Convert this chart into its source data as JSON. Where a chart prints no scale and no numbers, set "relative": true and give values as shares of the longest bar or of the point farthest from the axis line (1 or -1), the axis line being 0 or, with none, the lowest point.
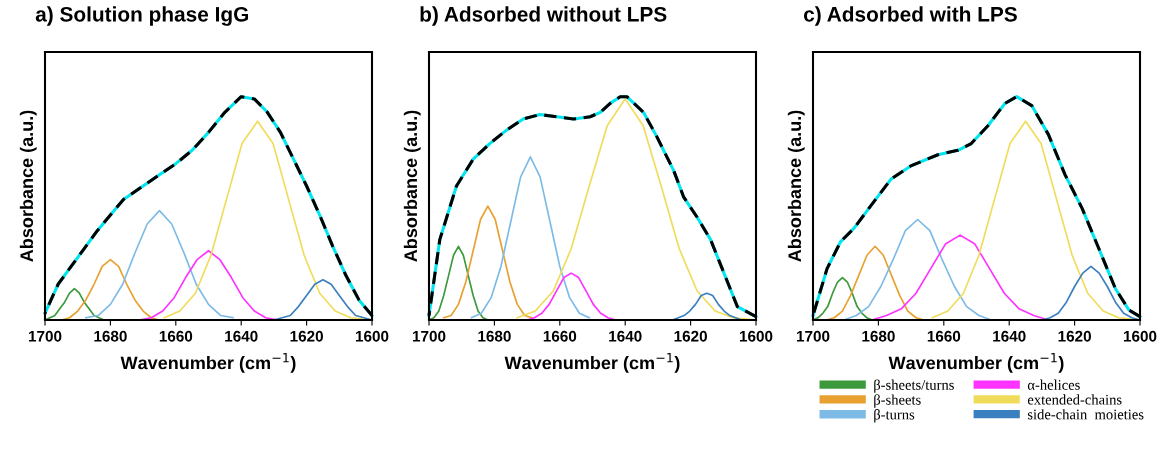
{
  "chart_data": [
    {
      "type": "line",
      "title": "a) Solution phase IgG",
      "xlabel": "Wavenumber (cm$^{−1}$)",
      "ylabel": "Absorbance (a.u.)",
      "relative": true,
      "xlim": [
        1700,
        1600
      ],
      "xticks": [
        1700,
        1680,
        1660,
        1640,
        1620,
        1600
      ],
      "grid": false,
      "legend": false,
      "tick_labels": "x",
      "series": [
        {
          "color": "#3c9a3c",
          "x": [
            1682,
            1683.5,
            1685,
            1686.5,
            1688,
            1689.5,
            1691,
            1692.5,
            1694,
            1695.5,
            1697,
            1698.5,
            1700
          ],
          "values": [
            0.0,
            0.01,
            0.02,
            0.05,
            0.08,
            0.12,
            0.14,
            0.12,
            0.08,
            0.05,
            0.02,
            0.01,
            0.0
          ]
        },
        {
          "color": "#e8a030",
          "x": [
            1665,
            1667.5,
            1670,
            1672.5,
            1675,
            1677.5,
            1680,
            1682.5,
            1685,
            1687.5,
            1690,
            1692.5,
            1695
          ],
          "values": [
            0.0,
            0.01,
            0.04,
            0.09,
            0.16,
            0.24,
            0.27,
            0.24,
            0.16,
            0.09,
            0.04,
            0.01,
            0.0
          ]
        },
        {
          "color": "#7dbbe6",
          "x": [
            1642.5,
            1646.25,
            1650,
            1653.75,
            1657.5,
            1661.25,
            1665,
            1668.75,
            1672.5,
            1676.25,
            1680,
            1683.75,
            1687.5
          ],
          "values": [
            0.01,
            0.02,
            0.07,
            0.16,
            0.3,
            0.43,
            0.49,
            0.43,
            0.3,
            0.16,
            0.07,
            0.02,
            0.01
          ]
        },
        {
          "color": "#ff33ff",
          "x": [
            1629,
            1632.5,
            1636,
            1639.5,
            1643,
            1646.5,
            1650,
            1653.5,
            1657,
            1660.5,
            1664,
            1667.5,
            1671
          ],
          "values": [
            0.0,
            0.01,
            0.04,
            0.1,
            0.19,
            0.27,
            0.31,
            0.27,
            0.19,
            0.1,
            0.04,
            0.01,
            0.0
          ]
        },
        {
          "color": "#f0dc5a",
          "x": [
            1600,
            1606.5,
            1611.25,
            1616,
            1620.75,
            1625.5,
            1630.25,
            1635,
            1639.75,
            1644.5,
            1649.25,
            1654,
            1658.75,
            1663.5
          ],
          "values": [
            0.0,
            0.01,
            0.04,
            0.12,
            0.29,
            0.54,
            0.79,
            0.89,
            0.79,
            0.54,
            0.29,
            0.12,
            0.04,
            0.01
          ]
        },
        {
          "color": "#3a80c0",
          "x": [
            1600,
            1602.5,
            1605,
            1607.5,
            1610,
            1612.5,
            1615,
            1617.5,
            1620,
            1622.5,
            1625,
            1627.5,
            1630
          ],
          "values": [
            0.0,
            0.01,
            0.02,
            0.06,
            0.11,
            0.16,
            0.18,
            0.16,
            0.11,
            0.06,
            0.02,
            0.01,
            0.0
          ]
        },
        {
          "color": "#00e5f0",
          "line_style": "solid",
          "x": [
            1600,
            1604,
            1608,
            1612,
            1616,
            1620,
            1624,
            1628,
            1632,
            1636,
            1640,
            1645,
            1650,
            1655,
            1660,
            1665,
            1670,
            1676,
            1680,
            1684,
            1688,
            1692,
            1696,
            1700
          ],
          "values": [
            0.02,
            0.09,
            0.2,
            0.33,
            0.47,
            0.6,
            0.72,
            0.84,
            0.93,
            0.99,
            1.0,
            0.93,
            0.84,
            0.76,
            0.7,
            0.65,
            0.6,
            0.54,
            0.47,
            0.4,
            0.32,
            0.24,
            0.16,
            0.03
          ]
        },
        {
          "color": "#000000",
          "line_style": "dashed",
          "x": [
            1600,
            1604,
            1608,
            1612,
            1616,
            1620,
            1624,
            1628,
            1632,
            1636,
            1640,
            1645,
            1650,
            1655,
            1660,
            1665,
            1670,
            1676,
            1680,
            1684,
            1688,
            1692,
            1696,
            1700
          ],
          "values": [
            0.02,
            0.09,
            0.2,
            0.33,
            0.47,
            0.6,
            0.72,
            0.84,
            0.93,
            0.99,
            1.0,
            0.93,
            0.84,
            0.76,
            0.7,
            0.65,
            0.6,
            0.54,
            0.47,
            0.4,
            0.32,
            0.24,
            0.16,
            0.03
          ]
        }
      ]
    },
    {
      "type": "line",
      "title": "b) Adsorbed without LPS",
      "xlabel": "Wavenumber (cm$^{−1}$)",
      "ylabel": "Absorbance (a.u.)",
      "relative": true,
      "xlim": [
        1700,
        1600
      ],
      "xticks": [
        1700,
        1680,
        1660,
        1640,
        1620,
        1600
      ],
      "grid": false,
      "legend": false,
      "tick_labels": "x",
      "series": [
        {
          "color": "#3c9a3c",
          "x": [
            1682,
            1683.5,
            1685,
            1686.5,
            1688,
            1689.5,
            1691,
            1692.5,
            1694,
            1695.5,
            1697,
            1698.5,
            1700
          ],
          "values": [
            0.0,
            0.01,
            0.04,
            0.11,
            0.2,
            0.29,
            0.33,
            0.29,
            0.2,
            0.11,
            0.04,
            0.01,
            0.0
          ]
        },
        {
          "color": "#e8a030",
          "x": [
            1668.5,
            1670.75,
            1673,
            1675.25,
            1677.5,
            1679.75,
            1682,
            1684.25,
            1686.5,
            1688.75,
            1691,
            1693.25,
            1695.5
          ],
          "values": [
            0.01,
            0.02,
            0.07,
            0.17,
            0.31,
            0.45,
            0.51,
            0.45,
            0.31,
            0.17,
            0.07,
            0.02,
            0.01
          ]
        },
        {
          "color": "#7dbbe6",
          "x": [
            1651,
            1654,
            1657,
            1660,
            1663,
            1666,
            1669,
            1672,
            1675,
            1678,
            1681,
            1684,
            1687
          ],
          "values": [
            0.01,
            0.03,
            0.1,
            0.24,
            0.44,
            0.64,
            0.73,
            0.64,
            0.44,
            0.24,
            0.1,
            0.03,
            0.01
          ]
        },
        {
          "color": "#ff33ff",
          "x": [
            1643,
            1645.25,
            1647.5,
            1649.75,
            1652,
            1654.25,
            1656.5,
            1658.75,
            1661,
            1663.25,
            1665.5,
            1667.75,
            1670
          ],
          "values": [
            0.0,
            0.01,
            0.03,
            0.07,
            0.13,
            0.19,
            0.21,
            0.19,
            0.13,
            0.07,
            0.03,
            0.01,
            0.0
          ]
        },
        {
          "color": "#f0dc5a",
          "x": [
            1600,
            1607,
            1612.5,
            1618,
            1623.5,
            1629,
            1634.5,
            1640,
            1645.5,
            1651,
            1656.5,
            1662,
            1667.5,
            1673
          ],
          "values": [
            0.0,
            0.01,
            0.04,
            0.13,
            0.32,
            0.6,
            0.87,
            0.99,
            0.87,
            0.6,
            0.32,
            0.13,
            0.04,
            0.01
          ]
        },
        {
          "color": "#3a80c0",
          "x": [
            1604.5,
            1606.25,
            1608,
            1609.75,
            1611.5,
            1613.25,
            1615,
            1616.75,
            1618.5,
            1620.25,
            1622,
            1623.75,
            1625.5
          ],
          "values": [
            0.0,
            0.01,
            0.02,
            0.04,
            0.07,
            0.11,
            0.12,
            0.11,
            0.07,
            0.04,
            0.02,
            0.01,
            0.0
          ]
        },
        {
          "color": "#00e5f0",
          "line_style": "solid",
          "x": [
            1600,
            1605.7,
            1609.8,
            1613.9,
            1618,
            1622.1,
            1625.2,
            1630.3,
            1634.4,
            1639.5,
            1641.5,
            1644.6,
            1647.6,
            1650.7,
            1655.8,
            1660.9,
            1666.1,
            1671.2,
            1676.3,
            1681.4,
            1686.5,
            1691.6,
            1696.7,
            1700
          ],
          "values": [
            0.015,
            0.06,
            0.21,
            0.36,
            0.46,
            0.55,
            0.67,
            0.82,
            0.93,
            1.0,
            1.0,
            0.97,
            0.93,
            0.91,
            0.9,
            0.91,
            0.92,
            0.9,
            0.85,
            0.79,
            0.72,
            0.6,
            0.36,
            0.02
          ]
        },
        {
          "color": "#000000",
          "line_style": "dashed",
          "x": [
            1600,
            1605.7,
            1609.8,
            1613.9,
            1618,
            1622.1,
            1625.2,
            1630.3,
            1634.4,
            1639.5,
            1641.5,
            1644.6,
            1647.6,
            1650.7,
            1655.8,
            1660.9,
            1666.1,
            1671.2,
            1676.3,
            1681.4,
            1686.5,
            1691.6,
            1696.7,
            1700
          ],
          "values": [
            0.015,
            0.06,
            0.21,
            0.36,
            0.46,
            0.55,
            0.67,
            0.82,
            0.93,
            1.0,
            1.0,
            0.97,
            0.93,
            0.91,
            0.9,
            0.91,
            0.92,
            0.9,
            0.85,
            0.79,
            0.72,
            0.6,
            0.36,
            0.02
          ]
        }
      ]
    },
    {
      "type": "line",
      "title": "c) Adsorbed with LPS",
      "xlabel": "Wavenumber (cm$^{−1}$)",
      "ylabel": "Absorbance (a.u.)",
      "relative": true,
      "xlim": [
        1700,
        1600
      ],
      "xticks": [
        1700,
        1680,
        1660,
        1640,
        1620,
        1600
      ],
      "grid": false,
      "legend": "bottom right",
      "tick_labels": "x",
      "series": [
        {
          "name": "β-sheets/turns",
          "color": "#3c9a3c",
          "x": [
            1682,
            1683.5,
            1685,
            1686.5,
            1688,
            1689.5,
            1691,
            1692.5,
            1694,
            1695.5,
            1697,
            1698.5,
            1700
          ],
          "values": [
            0.0,
            0.01,
            0.03,
            0.06,
            0.12,
            0.17,
            0.19,
            0.17,
            0.12,
            0.06,
            0.03,
            0.01,
            0.0
          ]
        },
        {
          "name": "β-sheets",
          "color": "#e8a030",
          "x": [
            1666,
            1668.5,
            1671,
            1673.5,
            1676,
            1678.5,
            1681,
            1683.5,
            1686,
            1688.5,
            1691,
            1693.5,
            1696
          ],
          "values": [
            0.0,
            0.01,
            0.04,
            0.11,
            0.2,
            0.29,
            0.33,
            0.29,
            0.2,
            0.11,
            0.04,
            0.01,
            0.0
          ]
        },
        {
          "name": "β-turns",
          "color": "#7dbbe6",
          "x": [
            1645.5,
            1649.25,
            1653,
            1656.75,
            1660.5,
            1664.25,
            1668,
            1671.75,
            1675.5,
            1679.25,
            1683,
            1686.75,
            1690.5
          ],
          "values": [
            0.0,
            0.02,
            0.06,
            0.15,
            0.27,
            0.4,
            0.45,
            0.4,
            0.27,
            0.15,
            0.06,
            0.02,
            0.0
          ]
        },
        {
          "name": "α-helices",
          "color": "#ff33ff",
          "x": [
            1628,
            1632.5,
            1637,
            1641.5,
            1646,
            1650.5,
            1655,
            1659.5,
            1664,
            1668.5,
            1673,
            1677.5,
            1682
          ],
          "values": [
            0.0,
            0.02,
            0.05,
            0.12,
            0.23,
            0.34,
            0.38,
            0.34,
            0.23,
            0.12,
            0.05,
            0.02,
            0.0
          ]
        },
        {
          "name": "extended-chains",
          "color": "#f0dc5a",
          "x": [
            1600,
            1606.5,
            1611.25,
            1616,
            1620.75,
            1625.5,
            1630.25,
            1635,
            1639.75,
            1644.5,
            1649.25,
            1654,
            1658.75,
            1663.5
          ],
          "values": [
            0.0,
            0.01,
            0.04,
            0.12,
            0.29,
            0.54,
            0.79,
            0.89,
            0.79,
            0.54,
            0.29,
            0.12,
            0.04,
            0.01
          ]
        },
        {
          "name": "side-chain  moieties",
          "color": "#3a80c0",
          "x": [
            1600,
            1602.5,
            1605,
            1607.5,
            1610,
            1612.5,
            1615,
            1617.5,
            1620,
            1622.5,
            1625,
            1627.5,
            1630
          ],
          "values": [
            0.0,
            0.01,
            0.03,
            0.08,
            0.15,
            0.21,
            0.24,
            0.21,
            0.15,
            0.08,
            0.03,
            0.01,
            0.0
          ]
        },
        {
          "color": "#00e5f0",
          "line_style": "solid",
          "x": [
            1600,
            1603.4,
            1607.5,
            1612.6,
            1617.7,
            1622.9,
            1628,
            1633.1,
            1637.7,
            1641.3,
            1646.5,
            1651.6,
            1655.7,
            1661.8,
            1670.1,
            1676.2,
            1682.4,
            1687.5,
            1691.6,
            1695.7,
            1700
          ],
          "values": [
            0.015,
            0.045,
            0.14,
            0.32,
            0.5,
            0.65,
            0.83,
            0.96,
            1.0,
            0.97,
            0.87,
            0.79,
            0.76,
            0.74,
            0.69,
            0.63,
            0.51,
            0.41,
            0.35,
            0.23,
            0.02
          ]
        },
        {
          "color": "#000000",
          "line_style": "dashed",
          "x": [
            1600,
            1603.4,
            1607.5,
            1612.6,
            1617.7,
            1622.9,
            1628,
            1633.1,
            1637.7,
            1641.3,
            1646.5,
            1651.6,
            1655.7,
            1661.8,
            1670.1,
            1676.2,
            1682.4,
            1687.5,
            1691.6,
            1695.7,
            1700
          ],
          "values": [
            0.015,
            0.045,
            0.14,
            0.32,
            0.5,
            0.65,
            0.83,
            0.96,
            1.0,
            0.97,
            0.87,
            0.79,
            0.76,
            0.74,
            0.69,
            0.63,
            0.51,
            0.41,
            0.35,
            0.23,
            0.02
          ]
        }
      ]
    }
  ]
}
